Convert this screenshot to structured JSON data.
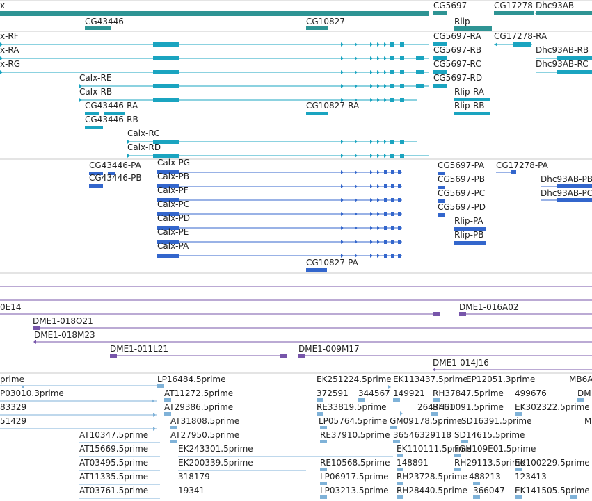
{
  "colors": {
    "genes": "#2e9494",
    "rna_flybase": "#1aa4c0",
    "rna_refseq": "#3366cc",
    "bac": "#7755aa",
    "est": "#7fb2d8",
    "divider": "#c8c8c8"
  },
  "tracks": [
    {
      "name": "gene-track",
      "color_key": "genes",
      "labels": [
        {
          "id": "g-calx",
          "text": "x"
        },
        {
          "id": "g-cg5697",
          "text": "CG5697"
        },
        {
          "id": "g-cg17278",
          "text": "CG17278"
        },
        {
          "id": "g-dhc93ab",
          "text": "Dhc93AB"
        },
        {
          "id": "g-cg43446",
          "text": "CG43446"
        },
        {
          "id": "g-cg10827",
          "text": "CG10827"
        },
        {
          "id": "g-rlip",
          "text": "Rlip"
        }
      ]
    },
    {
      "name": "flybase-transcript-track",
      "color_key": "rna_flybase",
      "labels": [
        {
          "id": "t1",
          "text": "x-RF"
        },
        {
          "id": "t2",
          "text": "x-RA"
        },
        {
          "id": "t3",
          "text": "x-RG"
        },
        {
          "id": "t4",
          "text": "Calx-RE"
        },
        {
          "id": "t5",
          "text": "Calx-RB"
        },
        {
          "id": "t6",
          "text": "CG43446-RA"
        },
        {
          "id": "t7",
          "text": "CG43446-RB"
        },
        {
          "id": "t8",
          "text": "CG10827-RA"
        },
        {
          "id": "t9",
          "text": "Calx-RC"
        },
        {
          "id": "t10",
          "text": "Calx-RD"
        },
        {
          "id": "t11",
          "text": "CG5697-RA"
        },
        {
          "id": "t12",
          "text": "CG5697-RB"
        },
        {
          "id": "t13",
          "text": "CG5697-RC"
        },
        {
          "id": "t14",
          "text": "CG5697-RD"
        },
        {
          "id": "t15",
          "text": "Rlip-RA"
        },
        {
          "id": "t16",
          "text": "Rlip-RB"
        },
        {
          "id": "t17",
          "text": "CG17278-RA"
        },
        {
          "id": "t18",
          "text": "Dhc93AB-RB"
        },
        {
          "id": "t19",
          "text": "Dhc93AB-RC"
        }
      ]
    },
    {
      "name": "refseq-transcript-track",
      "color_key": "rna_refseq",
      "labels": [
        {
          "id": "r1",
          "text": "CG43446-PA"
        },
        {
          "id": "r2",
          "text": "CG43446-PB"
        },
        {
          "id": "r3",
          "text": "Calx-PG"
        },
        {
          "id": "r4",
          "text": "Calx-PB"
        },
        {
          "id": "r5",
          "text": "Calx-PF"
        },
        {
          "id": "r6",
          "text": "Calx-PC"
        },
        {
          "id": "r7",
          "text": "Calx-PD"
        },
        {
          "id": "r8",
          "text": "Calx-PE"
        },
        {
          "id": "r9",
          "text": "Calx-PA"
        },
        {
          "id": "r10",
          "text": "CG10827-PA"
        },
        {
          "id": "r11",
          "text": "CG5697-PA"
        },
        {
          "id": "r12",
          "text": "CG5697-PB"
        },
        {
          "id": "r13",
          "text": "CG5697-PC"
        },
        {
          "id": "r14",
          "text": "CG5697-PD"
        },
        {
          "id": "r15",
          "text": "Rlip-PA"
        },
        {
          "id": "r16",
          "text": "Rlip-PB"
        },
        {
          "id": "r17",
          "text": "CG17278-PA"
        },
        {
          "id": "r18",
          "text": "Dhc93AB-PB"
        },
        {
          "id": "r19",
          "text": "Dhc93AB-PC"
        }
      ]
    },
    {
      "name": "bac-clone-track",
      "color_key": "bac",
      "labels": [
        {
          "id": "b1",
          "text": "0E14"
        },
        {
          "id": "b2",
          "text": "DME1-016A02"
        },
        {
          "id": "b3",
          "text": "DME1-018O21"
        },
        {
          "id": "b4",
          "text": "DME1-018M23"
        },
        {
          "id": "b5",
          "text": "DME1-011L21"
        },
        {
          "id": "b6",
          "text": "DME1-009M17"
        },
        {
          "id": "b7",
          "text": "DME1-014J16"
        }
      ]
    },
    {
      "name": "est-track",
      "color_key": "est",
      "labels": [
        {
          "id": "e1",
          "text": "prime"
        },
        {
          "id": "e2",
          "text": "P03010.3prime"
        },
        {
          "id": "e3",
          "text": "83329"
        },
        {
          "id": "e4",
          "text": "51429"
        },
        {
          "id": "e5",
          "text": "LP16484.5prime"
        },
        {
          "id": "e6",
          "text": "AT11272.5prime"
        },
        {
          "id": "e7",
          "text": "AT29386.5prime"
        },
        {
          "id": "e8",
          "text": "AT31808.5prime"
        },
        {
          "id": "e9",
          "text": "AT27950.5prime"
        },
        {
          "id": "e10",
          "text": "AT10347.5prime"
        },
        {
          "id": "e11",
          "text": "AT15669.5prime"
        },
        {
          "id": "e12",
          "text": "AT03495.5prime"
        },
        {
          "id": "e13",
          "text": "AT11335.5prime"
        },
        {
          "id": "e14",
          "text": "AT03761.5prime"
        },
        {
          "id": "e15",
          "text": "EK243301.5prime"
        },
        {
          "id": "e16",
          "text": "EK200339.5prime"
        },
        {
          "id": "e17",
          "text": "318179"
        },
        {
          "id": "e18",
          "text": "19341"
        },
        {
          "id": "e19",
          "text": "EK251224.5prime"
        },
        {
          "id": "e20",
          "text": "372591"
        },
        {
          "id": "e21",
          "text": "344567"
        },
        {
          "id": "e22",
          "text": "RE33819.5prime"
        },
        {
          "id": "e23",
          "text": "LP05764.5prime"
        },
        {
          "id": "e24",
          "text": "RE37910.5prime"
        },
        {
          "id": "e25",
          "text": "RE10568.5prime"
        },
        {
          "id": "e26",
          "text": "LP06917.5prime"
        },
        {
          "id": "e27",
          "text": "LP03213.5prime"
        },
        {
          "id": "e28",
          "text": "EK113437.5prime"
        },
        {
          "id": "e29",
          "text": "149921"
        },
        {
          "id": "e30",
          "text": "2643461"
        },
        {
          "id": "e31",
          "text": "GM09178.5prime"
        },
        {
          "id": "e32",
          "text": "36546329118"
        },
        {
          "id": "e33",
          "text": "EK110111.5prime"
        },
        {
          "id": "e34",
          "text": "148891"
        },
        {
          "id": "e35",
          "text": "RH23728.5prime"
        },
        {
          "id": "e36",
          "text": "RH28440.5prime"
        },
        {
          "id": "e37",
          "text": "EP12051.3prime"
        },
        {
          "id": "e38",
          "text": "RH37847.5prime"
        },
        {
          "id": "e39",
          "text": "RH30091.5prime"
        },
        {
          "id": "e40",
          "text": "SD16391.5prime"
        },
        {
          "id": "e41",
          "text": "SD14615.5prime"
        },
        {
          "id": "e42",
          "text": "FGH109E01.5prime"
        },
        {
          "id": "e43",
          "text": "RH29113.5prime"
        },
        {
          "id": "e44",
          "text": "488213"
        },
        {
          "id": "e45",
          "text": "366047"
        },
        {
          "id": "e46",
          "text": "499676"
        },
        {
          "id": "e47",
          "text": "EK302322.5prime"
        },
        {
          "id": "e48",
          "text": "EK100229.5prime"
        },
        {
          "id": "e49",
          "text": "123413"
        },
        {
          "id": "e50",
          "text": "EK141505.5prime"
        },
        {
          "id": "e51",
          "text": "MB6A"
        },
        {
          "id": "e52",
          "text": "DM"
        },
        {
          "id": "e53",
          "text": "M"
        }
      ]
    }
  ]
}
